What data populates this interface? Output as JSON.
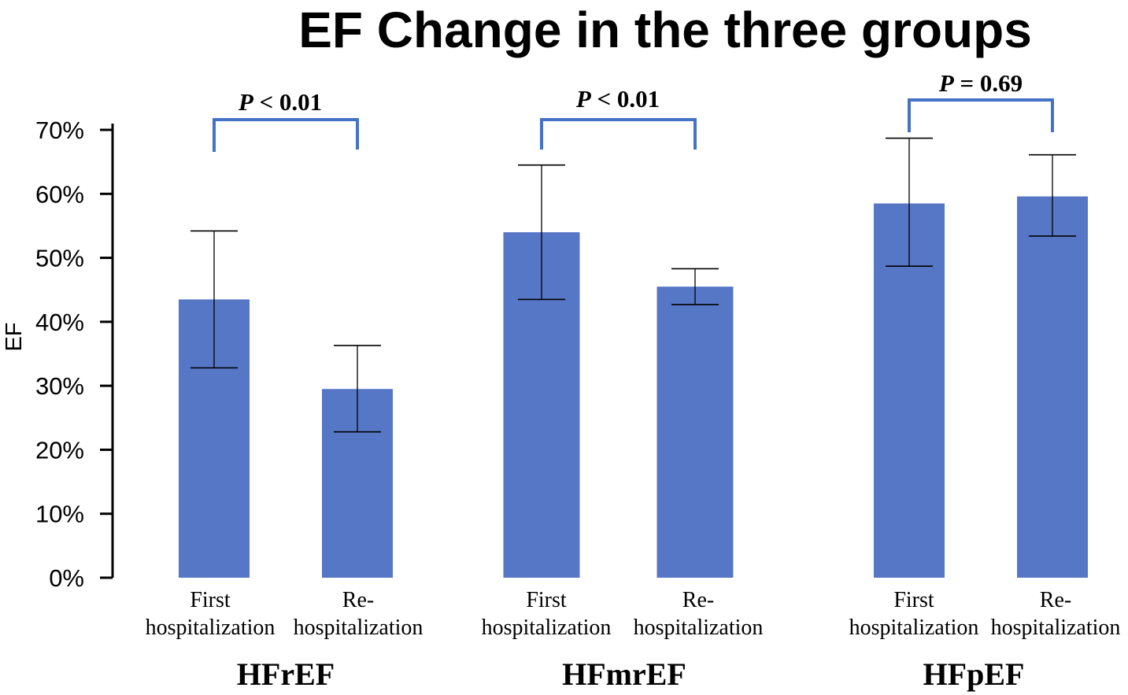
{
  "chart_data": {
    "type": "bar",
    "title": "EF Change in the three groups",
    "ylabel": "EF",
    "xlabel": "",
    "ylim": [
      0,
      70
    ],
    "y_tick_values": [
      0,
      10,
      20,
      30,
      40,
      50,
      60,
      70
    ],
    "y_tick_labels": [
      "0%",
      "10%",
      "20%",
      "30%",
      "40%",
      "50%",
      "60%",
      "70%"
    ],
    "bar_color": "#5677C6",
    "bracket_color": "#4472C4",
    "groups": [
      {
        "name": "HFrEF",
        "p_label": "P",
        "p_text": " < 0.01",
        "bars": [
          {
            "label_lines": [
              "First",
              "hospitalization"
            ],
            "value": 43.5,
            "err_low": 32.8,
            "err_high": 54.2
          },
          {
            "label_lines": [
              "Re-",
              "hospitalization"
            ],
            "value": 29.5,
            "err_low": 22.8,
            "err_high": 36.3
          }
        ]
      },
      {
        "name": "HFmrEF",
        "p_label": "P",
        "p_text": " < 0.01",
        "bars": [
          {
            "label_lines": [
              "First",
              "hospitalization"
            ],
            "value": 54.0,
            "err_low": 43.5,
            "err_high": 64.5
          },
          {
            "label_lines": [
              "Re-",
              "hospitalization"
            ],
            "value": 45.5,
            "err_low": 42.7,
            "err_high": 48.3
          }
        ]
      },
      {
        "name": "HFpEF",
        "p_label": "P",
        "p_text": " = 0.69",
        "bars": [
          {
            "label_lines": [
              "First",
              "hospitalization"
            ],
            "value": 58.5,
            "err_low": 48.7,
            "err_high": 68.7
          },
          {
            "label_lines": [
              "Re-",
              "hospitalization"
            ],
            "value": 59.6,
            "err_low": 53.4,
            "err_high": 66.1
          }
        ]
      }
    ]
  }
}
